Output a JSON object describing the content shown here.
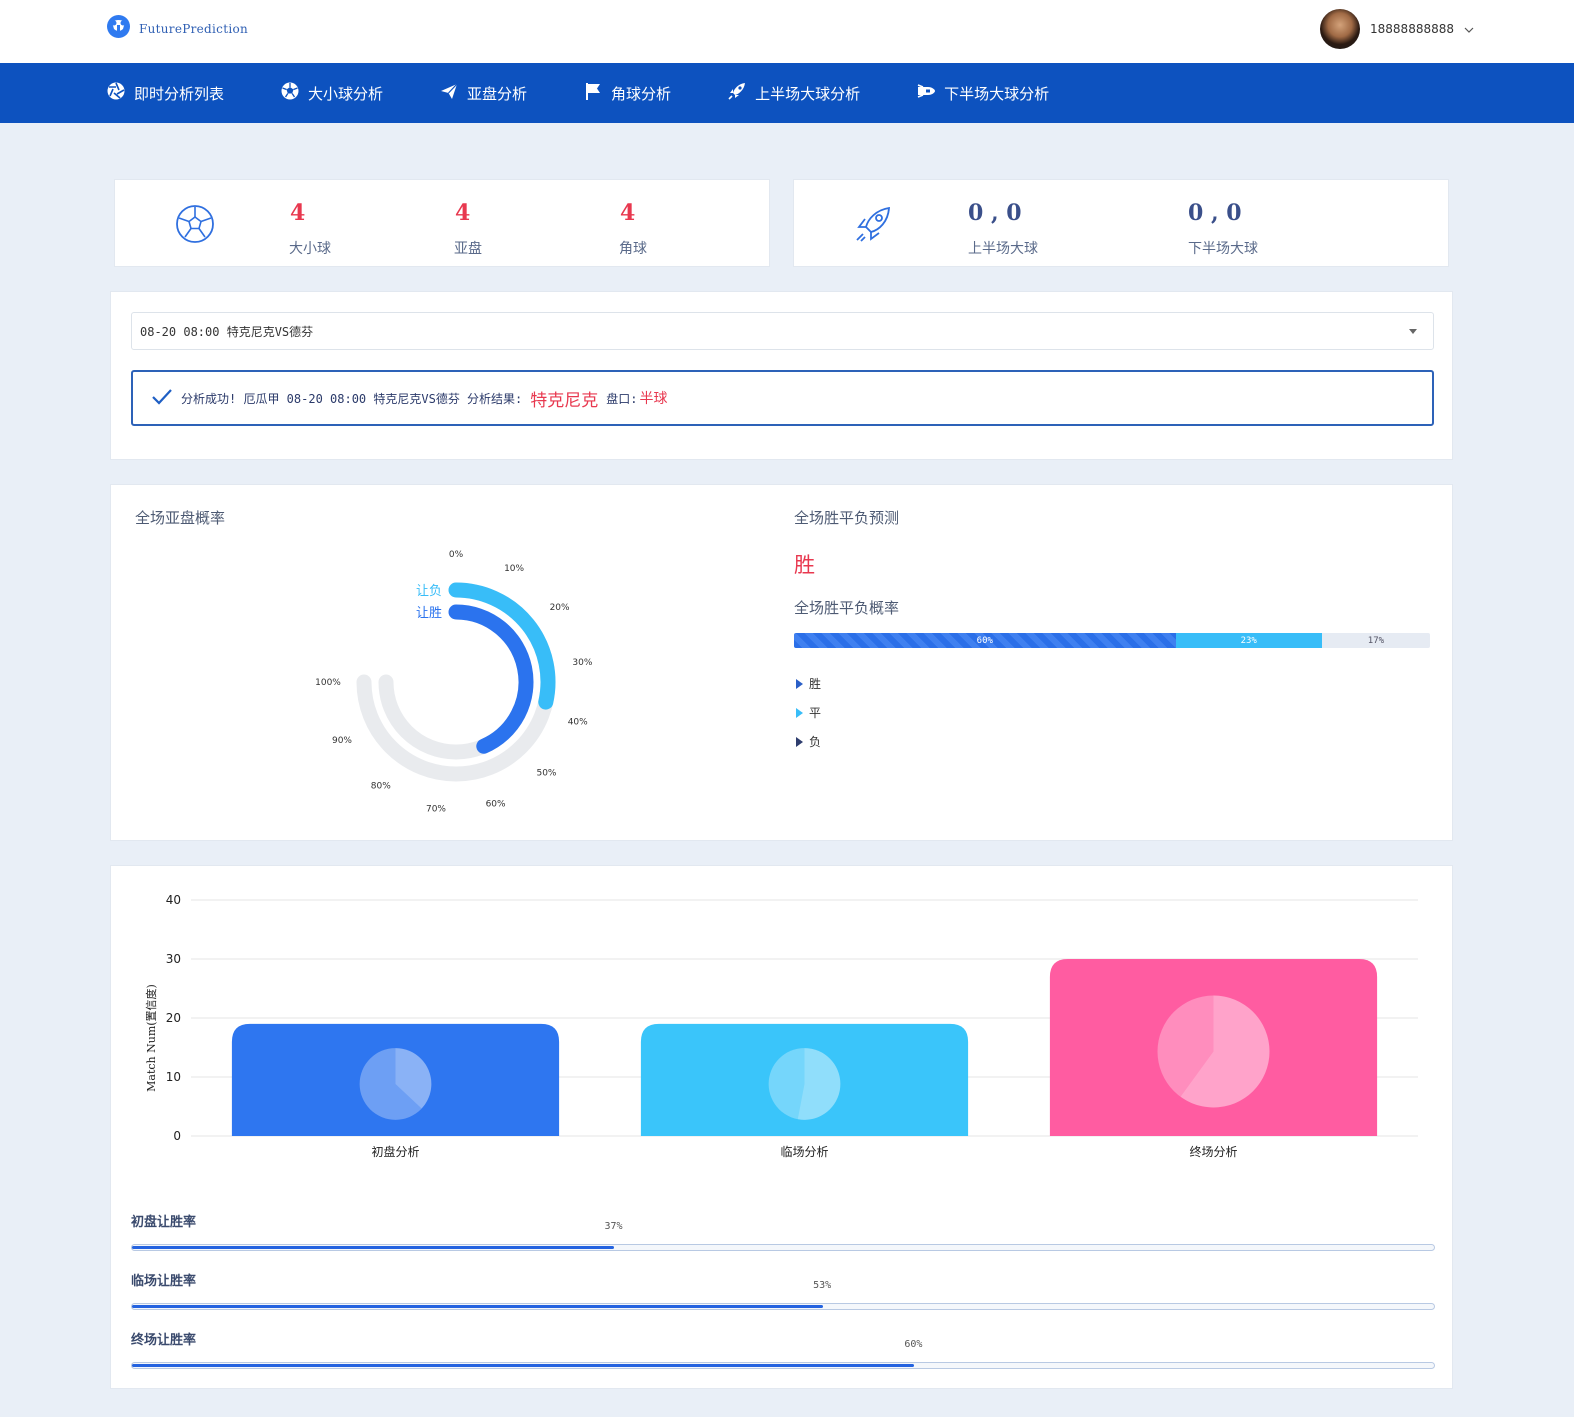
{
  "header": {
    "logo_text": "FuturePrediction",
    "user_phone": "18888888888"
  },
  "nav": {
    "items": [
      {
        "label": "即时分析列表",
        "icon": "aperture-icon"
      },
      {
        "label": "大小球分析",
        "icon": "soccer-ball-icon"
      },
      {
        "label": "亚盘分析",
        "icon": "paper-plane-icon"
      },
      {
        "label": "角球分析",
        "icon": "flag-icon"
      },
      {
        "label": "上半场大球分析",
        "icon": "rocket-icon"
      },
      {
        "label": "下半场大球分析",
        "icon": "space-shuttle-icon"
      }
    ]
  },
  "stats_left": {
    "items": [
      {
        "value": "4",
        "label": "大小球"
      },
      {
        "value": "4",
        "label": "亚盘"
      },
      {
        "value": "4",
        "label": "角球"
      }
    ]
  },
  "stats_right": {
    "items": [
      {
        "value": "0 , 0",
        "label": "上半场大球"
      },
      {
        "value": "0 , 0",
        "label": "下半场大球"
      }
    ]
  },
  "match": {
    "selected": "08-20 08:00 特克尼克VS德芬",
    "alert_prefix": "分析成功! 厄瓜甲 08-20 08:00 特克尼克VS德芬 分析结果:",
    "alert_team": "特克尼克",
    "alert_handicap_label": "盘口:",
    "alert_handicap": "半球"
  },
  "asian_handicap": {
    "title": "全场亚盘概率",
    "series": [
      {
        "name": "让负",
        "value": 38,
        "color": "#38bdf8"
      },
      {
        "name": "让胜",
        "value": 58,
        "color": "#2b73ee"
      }
    ],
    "ticks": [
      "0%",
      "10%",
      "20%",
      "30%",
      "40%",
      "50%",
      "60%",
      "70%",
      "80%",
      "90%",
      "100%"
    ]
  },
  "result": {
    "title": "全场胜平负预测",
    "prediction": "胜",
    "prob_title": "全场胜平负概率",
    "segments": [
      {
        "label": "60%",
        "value": 60,
        "color": "#2b73ee"
      },
      {
        "label": "23%",
        "value": 23,
        "color": "#38bdf8"
      },
      {
        "label": "17%",
        "value": 17,
        "color": "#e6ebf3"
      }
    ],
    "legend": [
      {
        "label": "胜",
        "color": "#2b5fc7"
      },
      {
        "label": "平",
        "color": "#38bdf8"
      },
      {
        "label": "负",
        "color": "#2e3d6e"
      }
    ]
  },
  "chart_data": {
    "type": "bar",
    "ylabel": "Match Num(置信度)",
    "ylim": [
      0,
      40
    ],
    "yticks": [
      0,
      10,
      20,
      30,
      40
    ],
    "categories": [
      "初盘分析",
      "临场分析",
      "终场分析"
    ],
    "values": [
      19,
      19,
      30
    ],
    "colors": [
      "#2e76f0",
      "#3ac5fa",
      "#ff5ca1"
    ],
    "inner_pie_shares": [
      37,
      53,
      60
    ]
  },
  "progress": {
    "items": [
      {
        "label": "初盘让胜率",
        "pct_text": "37%",
        "value": 37
      },
      {
        "label": "临场让胜率",
        "pct_text": "53%",
        "value": 53
      },
      {
        "label": "终场让胜率",
        "pct_text": "60%",
        "value": 60
      }
    ]
  }
}
